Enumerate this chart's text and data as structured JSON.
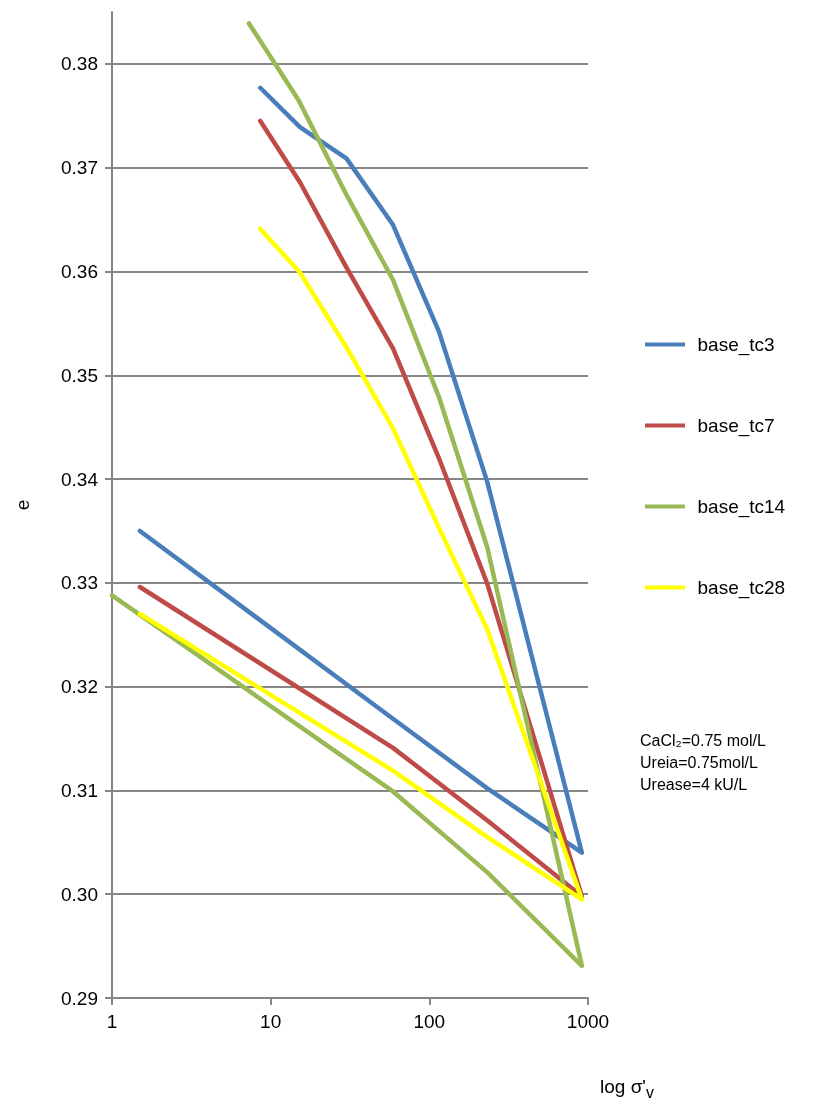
{
  "chart_data": {
    "type": "line",
    "xlabel": "log σ'$_{v}$",
    "ylabel": "e",
    "log": "x",
    "xlim": [
      1,
      1000
    ],
    "xticks": [
      1,
      10,
      100,
      1000
    ],
    "ylim": [
      0.29,
      0.385
    ],
    "yticks": [
      0.29,
      {
        "value": 0.3,
        "label": "0.30"
      },
      0.31,
      0.32,
      0.33,
      0.34,
      0.35,
      0.36,
      0.37,
      0.38
    ],
    "grid": "y",
    "legend": "right",
    "marker": "none",
    "line_style": "solid",
    "series": [
      {
        "name": "base_tc3",
        "color": "#4a7ebb",
        "x": [
          8.6,
          15.3,
          30,
          59,
          115,
          232,
          915,
          232,
          59,
          1.5
        ],
        "values": [
          0.3777,
          0.3739,
          0.3709,
          0.3645,
          0.3542,
          0.3397,
          0.304,
          0.3102,
          0.3169,
          0.335
        ]
      },
      {
        "name": "base_tc7",
        "color": "#be4b48",
        "x": [
          8.6,
          15.3,
          30,
          59,
          115,
          232,
          915,
          232,
          59,
          1.5
        ],
        "values": [
          0.3745,
          0.3686,
          0.3604,
          0.3526,
          0.342,
          0.3299,
          0.2998,
          0.3071,
          0.3141,
          0.3296
        ]
      },
      {
        "name": "base_tc14",
        "color": "#98b954",
        "x": [
          7.3,
          15,
          30,
          59,
          115,
          232,
          915,
          232,
          59,
          1
        ],
        "values": [
          0.3839,
          0.3765,
          0.3674,
          0.3592,
          0.3479,
          0.3334,
          0.2931,
          0.3021,
          0.3099,
          0.3288
        ]
      },
      {
        "name": "base_tc28",
        "color": "#ffff00",
        "x": [
          8.6,
          15.3,
          30,
          59,
          115,
          232,
          915,
          232,
          59,
          1.5
        ],
        "values": [
          0.3641,
          0.3599,
          0.3527,
          0.3449,
          0.3353,
          0.3255,
          0.2995,
          0.3055,
          0.3119,
          0.327
        ]
      }
    ],
    "annotations": [
      "CaCl₂=0.75 mol/L",
      "Ureia=0.75mol/L",
      "Urease=4 kU/L"
    ]
  }
}
